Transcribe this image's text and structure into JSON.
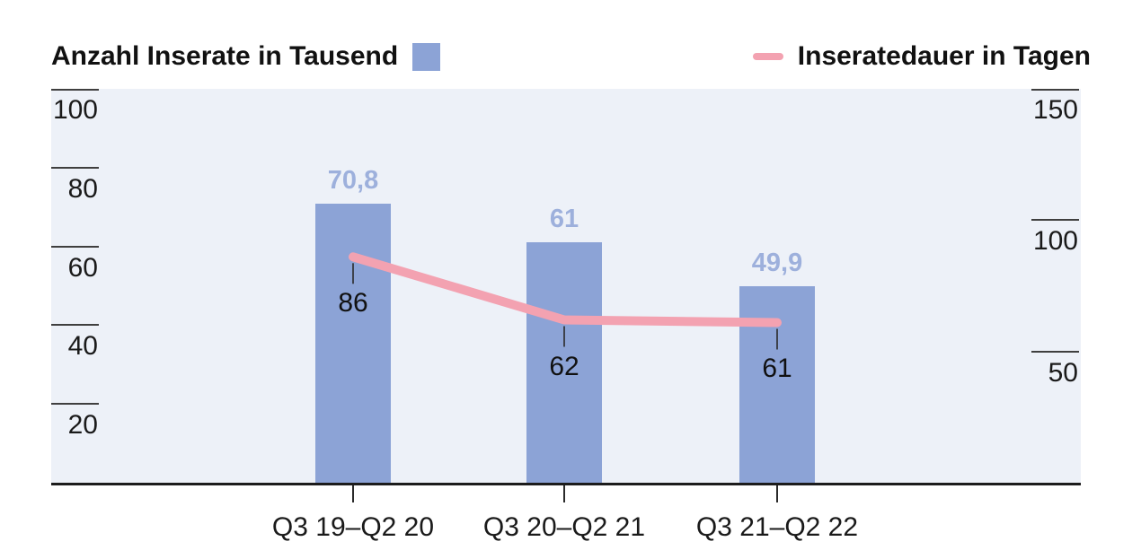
{
  "legend": {
    "bars_label": "Anzahl Inserate in Tausend",
    "line_label": "Inseratedauer in Tagen"
  },
  "left_axis": {
    "labels": [
      "100",
      "80",
      "60",
      "40",
      "20"
    ]
  },
  "right_axis": {
    "labels": [
      "150",
      "100",
      "50"
    ]
  },
  "categories": [
    "Q3 19–Q2 20",
    "Q3 20–Q2 21",
    "Q3 21–Q2 22"
  ],
  "bars": {
    "labels": [
      "70,8",
      "61",
      "49,9"
    ]
  },
  "line": {
    "labels": [
      "86",
      "62",
      "61"
    ]
  },
  "chart_data": {
    "type": "bar",
    "subtype": "bar-and-line-dual-axis",
    "categories": [
      "Q3 19–Q2 20",
      "Q3 20–Q2 21",
      "Q3 21–Q2 22"
    ],
    "series": [
      {
        "name": "Anzahl Inserate in Tausend",
        "type": "bar",
        "axis": "left",
        "values": [
          70.8,
          61,
          49.9
        ],
        "value_labels": [
          "70,8",
          "61",
          "49,9"
        ],
        "color": "#8ca3d6"
      },
      {
        "name": "Inseratedauer in Tagen",
        "type": "line",
        "axis": "right",
        "values": [
          86,
          62,
          61
        ],
        "value_labels": [
          "86",
          "62",
          "61"
        ],
        "color": "#f3a2b1"
      }
    ],
    "left_axis": {
      "ticks": [
        100,
        80,
        60,
        40,
        20
      ],
      "range": [
        0,
        100
      ]
    },
    "right_axis": {
      "ticks": [
        150,
        100,
        50
      ],
      "range": [
        0,
        150
      ]
    },
    "legend_position": "top",
    "grid": false,
    "plot_background": "#edf1f8",
    "colors": {
      "bar": "#8ca3d6",
      "bar_label": "#9db0dc",
      "line": "#f3a2b1",
      "axis_line": "#1c1c1c"
    }
  }
}
